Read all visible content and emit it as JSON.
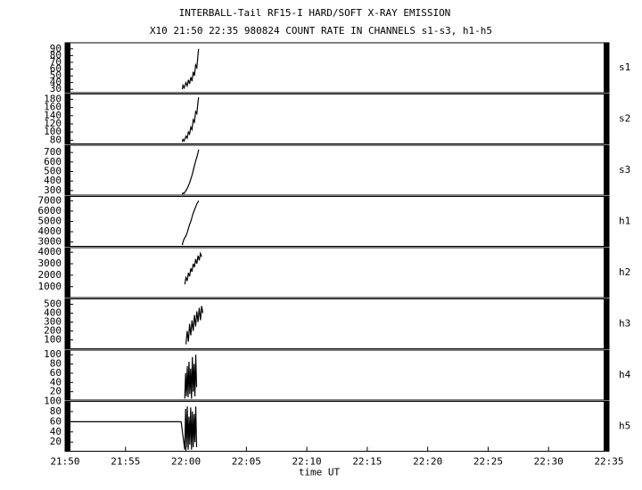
{
  "title": "INTERBALL-Tail RF15-I HARD/SOFT X-RAY EMISSION",
  "subtitle": "X10  21:50 22:35 980824  COUNT RATE IN CHANNELS s1-s3, h1-h5",
  "chart_data": [
    {
      "type": "line",
      "label": "s1",
      "xlim": [
        1310,
        1355
      ],
      "ylim": [
        25,
        99
      ],
      "yticks": [
        30,
        40,
        50,
        60,
        70,
        80,
        90
      ],
      "x": [
        1319.7,
        1319.75,
        1319.85,
        1320.0,
        1320.1,
        1320.2,
        1320.3,
        1320.4,
        1320.5,
        1320.6,
        1320.7,
        1320.8,
        1320.9,
        1321.0,
        1321.05
      ],
      "values": [
        30,
        36,
        32,
        40,
        35,
        44,
        38,
        48,
        42,
        56,
        50,
        66,
        62,
        82,
        90
      ]
    },
    {
      "type": "line",
      "label": "s2",
      "xlim": [
        1310,
        1355
      ],
      "ylim": [
        71,
        193
      ],
      "yticks": [
        80,
        100,
        120,
        140,
        160,
        180
      ],
      "x": [
        1319.7,
        1319.75,
        1319.85,
        1320.0,
        1320.1,
        1320.2,
        1320.3,
        1320.4,
        1320.5,
        1320.6,
        1320.7,
        1320.8,
        1320.9,
        1321.0,
        1321.05
      ],
      "values": [
        76,
        82,
        78,
        90,
        85,
        100,
        95,
        112,
        106,
        130,
        124,
        150,
        145,
        175,
        185
      ]
    },
    {
      "type": "line",
      "label": "s3",
      "xlim": [
        1310,
        1355
      ],
      "ylim": [
        252,
        776
      ],
      "yticks": [
        300,
        400,
        500,
        600,
        700
      ],
      "x": [
        1319.7,
        1319.75,
        1319.85,
        1320.0,
        1320.1,
        1320.2,
        1320.3,
        1320.4,
        1320.5,
        1320.6,
        1320.7,
        1320.8,
        1320.9,
        1321.0,
        1321.05
      ],
      "values": [
        260,
        275,
        270,
        300,
        320,
        350,
        380,
        420,
        460,
        510,
        560,
        610,
        650,
        700,
        730
      ]
    },
    {
      "type": "line",
      "label": "h1",
      "xlim": [
        1310,
        1355
      ],
      "ylim": [
        2580,
        7420
      ],
      "yticks": [
        3000,
        4000,
        5000,
        6000,
        7000
      ],
      "x": [
        1319.7,
        1319.75,
        1319.85,
        1320.0,
        1320.1,
        1320.2,
        1320.3,
        1320.4,
        1320.5,
        1320.6,
        1320.7,
        1320.8,
        1320.9,
        1321.0,
        1321.05
      ],
      "values": [
        2700,
        3000,
        3300,
        3600,
        3900,
        4300,
        4700,
        5000,
        5400,
        5800,
        6100,
        6400,
        6700,
        6900,
        7000
      ]
    },
    {
      "type": "line",
      "label": "h2",
      "xlim": [
        1310,
        1355
      ],
      "ylim": [
        50,
        4400
      ],
      "yticks": [
        1000,
        2000,
        3000,
        4000
      ],
      "x": [
        1319.9,
        1320.0,
        1320.1,
        1320.2,
        1320.3,
        1320.4,
        1320.5,
        1320.6,
        1320.7,
        1320.8,
        1320.9,
        1321.0,
        1321.1,
        1321.2,
        1321.3
      ],
      "values": [
        1200,
        1800,
        1500,
        2200,
        1900,
        2600,
        2300,
        3000,
        2700,
        3400,
        3000,
        3700,
        3300,
        3900,
        3600
      ]
    },
    {
      "type": "line",
      "label": "h3",
      "xlim": [
        1310,
        1355
      ],
      "ylim": [
        0,
        560
      ],
      "yticks": [
        100,
        200,
        300,
        400,
        500
      ],
      "x": [
        1320.0,
        1320.1,
        1320.2,
        1320.3,
        1320.4,
        1320.5,
        1320.6,
        1320.7,
        1320.8,
        1320.9,
        1321.0,
        1321.1,
        1321.2,
        1321.3,
        1321.4
      ],
      "values": [
        50,
        200,
        80,
        280,
        150,
        320,
        200,
        380,
        250,
        420,
        300,
        460,
        320,
        480,
        400
      ]
    },
    {
      "type": "line",
      "label": "h4",
      "xlim": [
        1310,
        1355
      ],
      "ylim": [
        2,
        110
      ],
      "yticks": [
        20,
        40,
        60,
        80,
        100
      ],
      "x": [
        1319.9,
        1319.97,
        1320.04,
        1320.11,
        1320.18,
        1320.25,
        1320.32,
        1320.39,
        1320.46,
        1320.53,
        1320.6,
        1320.67,
        1320.74,
        1320.81,
        1320.88
      ],
      "values": [
        5,
        60,
        10,
        75,
        8,
        85,
        15,
        70,
        5,
        95,
        20,
        80,
        10,
        100,
        30
      ]
    },
    {
      "type": "line",
      "label": "h5",
      "xlim": [
        1310,
        1355
      ],
      "ylim": [
        2,
        100
      ],
      "yticks": [
        20,
        40,
        60,
        80,
        100
      ],
      "xlabel": "time UT",
      "xticks": [
        {
          "value": 1310,
          "label": "21:50"
        },
        {
          "value": 1315,
          "label": "21:55"
        },
        {
          "value": 1320,
          "label": "22:00"
        },
        {
          "value": 1325,
          "label": "22:05"
        },
        {
          "value": 1330,
          "label": "22:10"
        },
        {
          "value": 1335,
          "label": "22:15"
        },
        {
          "value": 1340,
          "label": "22:20"
        },
        {
          "value": 1345,
          "label": "22:25"
        },
        {
          "value": 1350,
          "label": "22:30"
        },
        {
          "value": 1355,
          "label": "22:35"
        }
      ],
      "x": [
        1310,
        1319.6,
        1319.9,
        1319.97,
        1320.04,
        1320.11,
        1320.18,
        1320.25,
        1320.32,
        1320.39,
        1320.46,
        1320.53,
        1320.6,
        1320.67,
        1320.74,
        1320.81,
        1320.88
      ],
      "values": [
        60,
        60,
        5,
        85,
        10,
        90,
        5,
        70,
        15,
        88,
        5,
        80,
        10,
        75,
        20,
        90,
        10
      ]
    }
  ]
}
